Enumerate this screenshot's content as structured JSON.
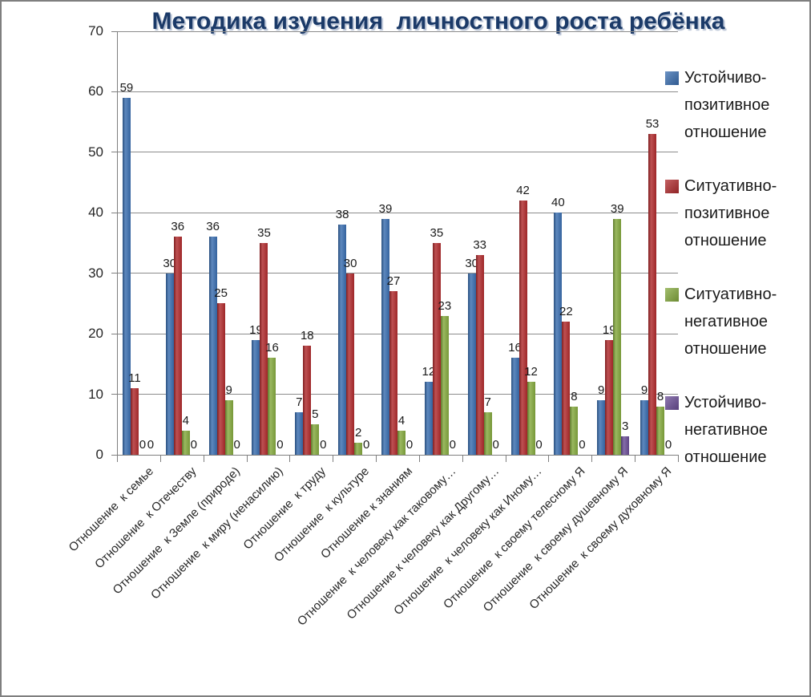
{
  "chart_data": {
    "type": "bar",
    "title": "Методика изучения  личностного роста ребёнка",
    "categories": [
      "Отношение  к семье",
      "Отношение  к Отечеству",
      "Отношение  к Земле (природе)",
      "Отношение  к миру (ненасилию)",
      "Отношение  к труду",
      "Отношение  к культуре",
      "Отношение к знаниям",
      "Отношение  к человеку как таковому…",
      "Отношение к человеку как Другому…",
      "Отношение  к человеку как Иному…",
      "Отношение  к своему телесному Я",
      "Отношение  к своему душевному Я",
      "Отношение  к своему духовному Я"
    ],
    "series": [
      {
        "name": "Устойчиво-позитивное отношение",
        "legend_lines": [
          "Устойчиво-",
          "позитивное",
          "отношение"
        ],
        "color": "#3a6eb0",
        "values": [
          59,
          30,
          36,
          19,
          7,
          38,
          39,
          12,
          30,
          16,
          40,
          9,
          9
        ]
      },
      {
        "name": "Ситуативно-позитивное отношение",
        "legend_lines": [
          "Ситуативно-",
          "позитивное",
          "отношение"
        ],
        "color": "#b02b2d",
        "values": [
          11,
          36,
          25,
          35,
          18,
          30,
          27,
          35,
          33,
          42,
          22,
          19,
          53
        ]
      },
      {
        "name": "Ситуативно-негативное отношение",
        "legend_lines": [
          "Ситуативно-",
          "негативное",
          "отношение"
        ],
        "color": "#84a93e",
        "values": [
          0,
          4,
          9,
          16,
          5,
          2,
          4,
          23,
          7,
          12,
          8,
          39,
          8
        ]
      },
      {
        "name": "Устойчиво-негативное отношение",
        "legend_lines": [
          "Устойчиво-",
          "негативное",
          "отношение"
        ],
        "color": "#6a4d96",
        "values": [
          0,
          0,
          0,
          0,
          0,
          0,
          0,
          0,
          0,
          0,
          0,
          3,
          0
        ]
      }
    ],
    "y_axis": {
      "min": 0,
      "max": 70,
      "ticks": [
        0,
        10,
        20,
        30,
        40,
        50,
        60,
        70
      ]
    },
    "grid": true,
    "data_labels": true,
    "legend_position": "right"
  },
  "colors": {
    "title": "#1b3a68",
    "axis": "#7f7f7f",
    "grid": "#8c8c8c",
    "text": "#262626"
  }
}
